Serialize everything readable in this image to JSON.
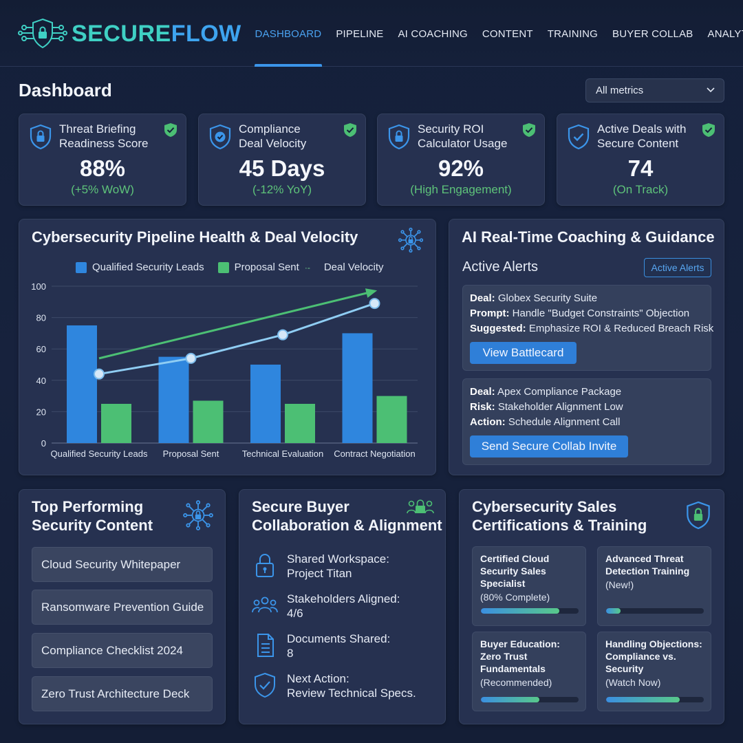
{
  "header": {
    "logo_part1": "SECURE",
    "logo_part2": "FLOW",
    "nav": [
      "DASHBOARD",
      "PIPELINE",
      "AI COACHING",
      "CONTENT",
      "TRAINING",
      "BUYER COLLAB",
      "ANALYTICS"
    ],
    "active_nav": "DASHBOARD"
  },
  "page": {
    "title": "Dashboard",
    "metric_filter": "All metrics"
  },
  "kpis": [
    {
      "label_line1": "Threat Briefing",
      "label_line2": "Readiness Score",
      "value": "88%",
      "sub": "(+5% WoW)",
      "icon": "shield-lock-icon"
    },
    {
      "label_line1": "Compliance",
      "label_line2": "Deal Velocity",
      "value": "45 Days",
      "sub": "(-12% YoY)",
      "icon": "shield-check-icon"
    },
    {
      "label_line1": "Security ROI",
      "label_line2": "Calculator Usage",
      "value": "92%",
      "sub": "(High Engagement)",
      "icon": "shield-lock-icon"
    },
    {
      "label_line1": "Active Deals with",
      "label_line2": "Secure Content",
      "value": "74",
      "sub": "(On Track)",
      "icon": "shield-check-icon"
    }
  ],
  "pipeline": {
    "title": "Cybersecurity Pipeline Health & Deal Velocity",
    "legend": [
      "Qualified Security Leads",
      "Proposal Sent",
      "Deal Velocity"
    ]
  },
  "chart_data": {
    "type": "bar",
    "categories": [
      "Qualified Security Leads",
      "Proposal Sent",
      "Technical Evaluation",
      "Contract Negotiation"
    ],
    "series": [
      {
        "name": "Qualified Security Leads",
        "values": [
          75,
          55,
          50,
          70
        ],
        "color": "#2f86de"
      },
      {
        "name": "Proposal Sent",
        "values": [
          25,
          27,
          25,
          30
        ],
        "color": "#4cbf74"
      },
      {
        "name": "Deal Velocity",
        "type": "line",
        "values": [
          44,
          54,
          69,
          89
        ],
        "color": "#8fcdf3"
      }
    ],
    "trend_arrow": {
      "from": 54,
      "to": 96,
      "color": "#4cbf74"
    },
    "ylim": [
      0,
      100
    ],
    "yticks": [
      0,
      20,
      40,
      60,
      80,
      100
    ],
    "grid": true,
    "legend_position": "top"
  },
  "coaching": {
    "title": "AI Real-Time Coaching & Guidance",
    "alerts_heading": "Active Alerts",
    "alerts_button": "Active Alerts",
    "alert1": {
      "deal_label": "Deal:",
      "deal": " Globex Security Suite",
      "prompt_label": "Prompt:",
      "prompt": " Handle \"Budget Constraints\" Objection",
      "suggested_label": "Suggested:",
      "suggested": " Emphasize ROI & Reduced Breach Risk",
      "button": "View Battlecard"
    },
    "alert2": {
      "deal_label": "Deal:",
      "deal": " Apex Compliance Package",
      "risk_label": "Risk:",
      "risk": " Stakeholder Alignment Low",
      "action_label": "Action:",
      "action": " Schedule Alignment Call",
      "button": "Send Secure Collab Invite"
    }
  },
  "content": {
    "title_line1": "Top Performing",
    "title_line2": "Security Content",
    "items": [
      "Cloud Security Whitepaper",
      "Ransomware Prevention Guide",
      "Compliance Checklist 2024",
      "Zero Trust Architecture Deck"
    ]
  },
  "collab": {
    "title_line1": "Secure Buyer",
    "title_line2": "Collaboration & Alignment",
    "rows": [
      {
        "line1": "Shared Workspace:",
        "line2": "Project Titan",
        "icon": "lock-icon"
      },
      {
        "line1": "Stakeholders Aligned:",
        "line2": "4/6",
        "icon": "people-icon"
      },
      {
        "line1": "Documents Shared:",
        "line2": "8",
        "icon": "document-icon"
      },
      {
        "line1": "Next Action:",
        "line2": "Review Technical Specs.",
        "icon": "shield-check-icon"
      }
    ]
  },
  "training": {
    "title_line1": "Cybersecurity Sales",
    "title_line2": "Certifications & Training",
    "certs": [
      {
        "name": "Certified Cloud Security Sales Specialist",
        "status": "(80% Complete)",
        "progress": 0.8
      },
      {
        "name": "Advanced Threat Detection Training",
        "status": "(New!)",
        "progress": 0.15
      },
      {
        "name": "Buyer Education: Zero Trust Fundamentals",
        "status": "(Recommended)",
        "progress": 0.6
      },
      {
        "name": "Handling Objections: Compliance vs. Security",
        "status": "(Watch Now)",
        "progress": 0.75
      }
    ]
  }
}
